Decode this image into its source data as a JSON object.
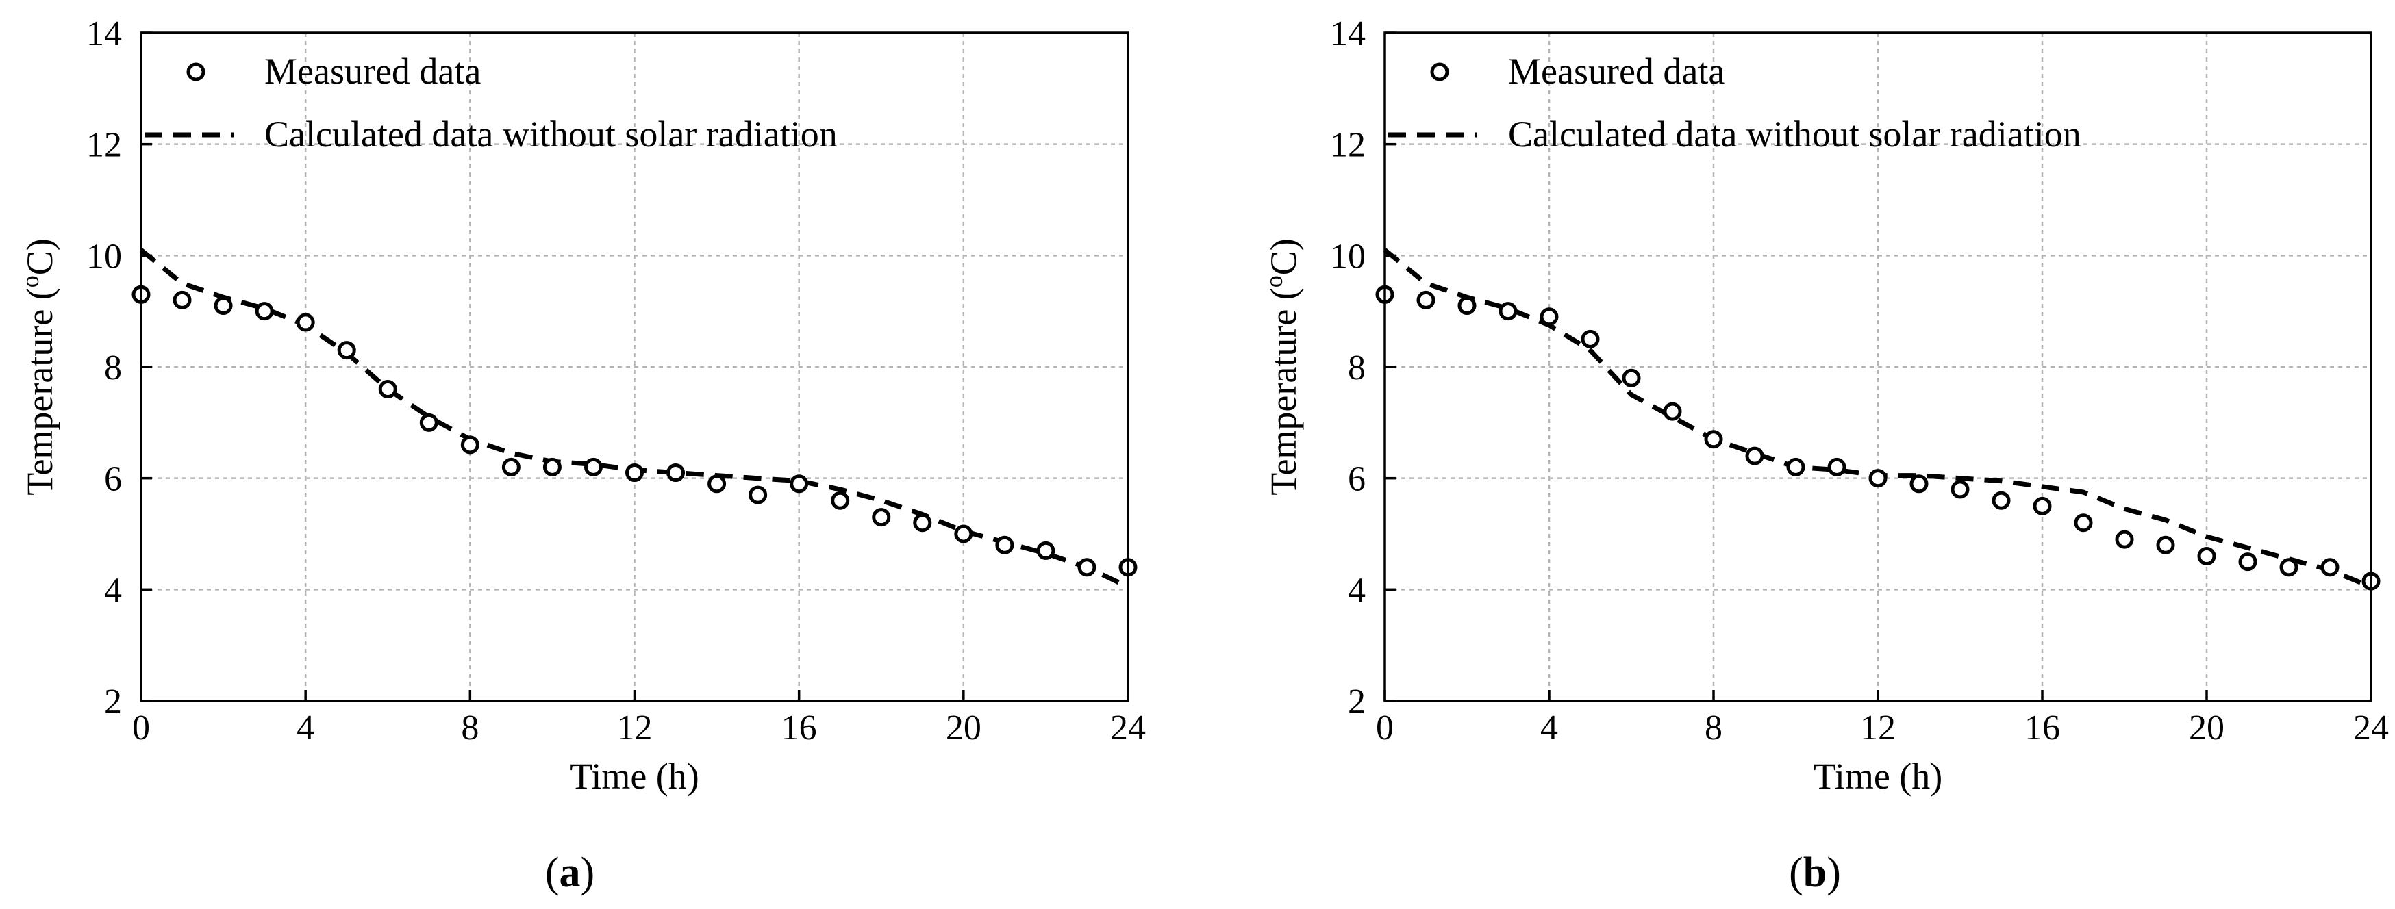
{
  "chart_data": [
    {
      "type": "scatter",
      "panel_label": "a",
      "xlabel": "Time (h)",
      "ylabel": "Temperature (",
      "ylabel_sup": "o",
      "ylabel_unit": "C)",
      "xlim": [
        0,
        24
      ],
      "ylim": [
        2,
        14
      ],
      "xticks": [
        "0",
        "4",
        "8",
        "12",
        "16",
        "20",
        "24"
      ],
      "yticks": [
        "2",
        "4",
        "6",
        "8",
        "10",
        "12",
        "14"
      ],
      "grid": true,
      "legend": {
        "placement": "top-left",
        "measured_label": "Measured data",
        "calculated_label": "Calculated data without solar radiation"
      },
      "series": [
        {
          "name": "Measured data",
          "style": "open-circle",
          "x": [
            0,
            1,
            2,
            3,
            4,
            5,
            6,
            7,
            8,
            9,
            10,
            11,
            12,
            13,
            14,
            15,
            16,
            17,
            18,
            19,
            20,
            21,
            22,
            23,
            24
          ],
          "y": [
            9.3,
            9.2,
            9.1,
            9.0,
            8.8,
            8.3,
            7.6,
            7.0,
            6.6,
            6.2,
            6.2,
            6.2,
            6.1,
            6.1,
            5.9,
            5.7,
            5.9,
            5.6,
            5.3,
            5.2,
            5.0,
            4.8,
            4.7,
            4.4,
            4.4
          ]
        },
        {
          "name": "Calculated data without solar radiation",
          "style": "dashed-line",
          "x": [
            0,
            1,
            2,
            3,
            4,
            5,
            6,
            7,
            8,
            9,
            10,
            11,
            12,
            13,
            14,
            15,
            16,
            17,
            18,
            19,
            20,
            21,
            22,
            23,
            24
          ],
          "y": [
            10.1,
            9.5,
            9.25,
            9.05,
            8.75,
            8.25,
            7.6,
            7.1,
            6.7,
            6.45,
            6.3,
            6.25,
            6.15,
            6.1,
            6.05,
            6.0,
            5.95,
            5.8,
            5.6,
            5.35,
            5.05,
            4.85,
            4.65,
            4.4,
            4.05
          ]
        }
      ]
    },
    {
      "type": "scatter",
      "panel_label": "b",
      "xlabel": "Time (h)",
      "ylabel": "Temperature (",
      "ylabel_sup": "o",
      "ylabel_unit": "C)",
      "xlim": [
        0,
        24
      ],
      "ylim": [
        2,
        14
      ],
      "xticks": [
        "0",
        "4",
        "8",
        "12",
        "16",
        "20",
        "24"
      ],
      "yticks": [
        "2",
        "4",
        "6",
        "8",
        "10",
        "12",
        "14"
      ],
      "grid": true,
      "legend": {
        "placement": "top-left",
        "measured_label": "Measured data",
        "calculated_label": "Calculated data without solar radiation"
      },
      "series": [
        {
          "name": "Measured data",
          "style": "open-circle",
          "x": [
            0,
            1,
            2,
            3,
            4,
            5,
            6,
            7,
            8,
            9,
            10,
            11,
            12,
            13,
            14,
            15,
            16,
            17,
            18,
            19,
            20,
            21,
            22,
            23,
            24
          ],
          "y": [
            9.3,
            9.2,
            9.1,
            9.0,
            8.9,
            8.5,
            7.8,
            7.2,
            6.7,
            6.4,
            6.2,
            6.2,
            6.0,
            5.9,
            5.8,
            5.6,
            5.5,
            5.2,
            4.9,
            4.8,
            4.6,
            4.5,
            4.4,
            4.4,
            4.15
          ]
        },
        {
          "name": "Calculated data without solar radiation",
          "style": "dashed-line",
          "x": [
            0,
            1,
            2,
            3,
            4,
            5,
            6,
            7,
            8,
            9,
            10,
            11,
            12,
            13,
            14,
            15,
            16,
            17,
            18,
            19,
            20,
            21,
            22,
            23,
            24
          ],
          "y": [
            10.1,
            9.5,
            9.25,
            9.05,
            8.75,
            8.3,
            7.5,
            7.1,
            6.7,
            6.45,
            6.2,
            6.15,
            6.05,
            6.05,
            6.0,
            5.95,
            5.85,
            5.75,
            5.45,
            5.25,
            4.95,
            4.75,
            4.55,
            4.35,
            4.05
          ]
        }
      ]
    }
  ]
}
